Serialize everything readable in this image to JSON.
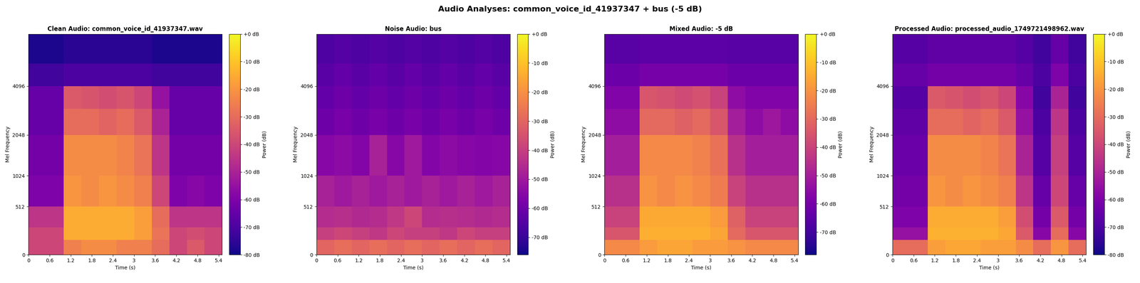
{
  "title": "Audio Analyses: common_voice_id_41937347 + bus (-5 dB)",
  "chart_data": [
    {
      "type": "heatmap",
      "title": "Clean Audio: common_voice_id_41937347.wav",
      "x_label": "Time (s)",
      "y_label": "Mel Frequency",
      "x": [
        0,
        0.5,
        1,
        1.5,
        2,
        2.5,
        3,
        3.5,
        4,
        4.5,
        5,
        5.5
      ],
      "y": [
        0,
        128,
        256,
        512,
        1024,
        2048,
        3000,
        4096,
        5500,
        8000
      ],
      "cells": [
        [
          -40,
          -40,
          -25,
          -22,
          -22,
          -25,
          -25,
          -30,
          -40,
          -35,
          -40
        ],
        [
          -40,
          -40,
          -15,
          -15,
          -15,
          -15,
          -18,
          -28,
          -40,
          -38,
          -40
        ],
        [
          -45,
          -45,
          -15,
          -15,
          -15,
          -15,
          -18,
          -30,
          -45,
          -45,
          -45
        ],
        [
          -60,
          -60,
          -20,
          -22,
          -20,
          -22,
          -25,
          -40,
          -60,
          -58,
          -60
        ],
        [
          -62,
          -62,
          -22,
          -22,
          -22,
          -24,
          -28,
          -45,
          -62,
          -62,
          -62
        ],
        [
          -65,
          -65,
          -30,
          -30,
          -32,
          -30,
          -35,
          -50,
          -65,
          -65,
          -65
        ],
        [
          -65,
          -65,
          -35,
          -36,
          -38,
          -36,
          -40,
          -55,
          -65,
          -65,
          -65
        ],
        [
          -72,
          -72,
          -70,
          -70,
          -70,
          -70,
          -70,
          -72,
          -72,
          -72,
          -72
        ],
        [
          -78,
          -78,
          -76,
          -76,
          -76,
          -76,
          -76,
          -78,
          -78,
          -78,
          -78
        ]
      ],
      "xlim": [
        0,
        5.5
      ],
      "xticks": [
        0,
        0.6,
        1.2,
        1.8,
        2.4,
        3,
        3.6,
        4.2,
        4.8,
        5.4
      ],
      "ylim": [
        0,
        8000
      ],
      "yticks": [
        0,
        512,
        1024,
        2048,
        4096
      ],
      "colorbar": {
        "label": "Power (dB)",
        "range": [
          -80,
          0
        ],
        "ticks": [
          {
            "value": 0,
            "label": "+0 dB"
          },
          {
            "value": -10,
            "label": "-10 dB"
          },
          {
            "value": -20,
            "label": "-20 dB"
          },
          {
            "value": -30,
            "label": "-30 dB"
          },
          {
            "value": -40,
            "label": "-40 dB"
          },
          {
            "value": -50,
            "label": "-50 dB"
          },
          {
            "value": -60,
            "label": "-60 dB"
          },
          {
            "value": -70,
            "label": "-70 dB"
          },
          {
            "value": -80,
            "label": "-80 dB"
          }
        ]
      }
    },
    {
      "type": "heatmap",
      "title": "Noise Audio: bus",
      "x_label": "Time (s)",
      "y_label": "Mel Frequency",
      "x": [
        0,
        0.5,
        1,
        1.5,
        2,
        2.5,
        3,
        3.5,
        4,
        4.5,
        5,
        5.5
      ],
      "y": [
        0,
        128,
        256,
        512,
        1024,
        2048,
        3000,
        4096,
        5500,
        8000
      ],
      "cells": [
        [
          -30,
          -28,
          -30,
          -28,
          -30,
          -28,
          -30,
          -28,
          -30,
          -28,
          -30
        ],
        [
          -40,
          -38,
          -40,
          -42,
          -38,
          -40,
          -40,
          -42,
          -38,
          -40,
          -40
        ],
        [
          -45,
          -44,
          -46,
          -45,
          -42,
          -38,
          -45,
          -44,
          -45,
          -46,
          -45
        ],
        [
          -48,
          -50,
          -48,
          -50,
          -48,
          -50,
          -48,
          -50,
          -48,
          -50,
          -48
        ],
        [
          -55,
          -54,
          -56,
          -48,
          -55,
          -50,
          -56,
          -54,
          -55,
          -56,
          -55
        ],
        [
          -60,
          -58,
          -60,
          -58,
          -60,
          -58,
          -60,
          -58,
          -60,
          -58,
          -60
        ],
        [
          -62,
          -60,
          -62,
          -60,
          -62,
          -60,
          -62,
          -60,
          -62,
          -60,
          -62
        ],
        [
          -64,
          -62,
          -64,
          -62,
          -64,
          -62,
          -64,
          -62,
          -64,
          -62,
          -64
        ],
        [
          -66,
          -65,
          -66,
          -65,
          -66,
          -65,
          -66,
          -65,
          -66,
          -65,
          -66
        ]
      ],
      "xlim": [
        0,
        5.5
      ],
      "xticks": [
        0,
        0.6,
        1.2,
        1.8,
        2.4,
        3,
        3.6,
        4.2,
        4.8,
        5.4
      ],
      "ylim": [
        0,
        8000
      ],
      "yticks": [
        0,
        512,
        1024,
        2048,
        4096
      ],
      "colorbar": {
        "label": "Power (dB)",
        "range": [
          -76,
          0
        ],
        "ticks": [
          {
            "value": 0,
            "label": "+0 dB"
          },
          {
            "value": -10,
            "label": "-10 dB"
          },
          {
            "value": -20,
            "label": "-20 dB"
          },
          {
            "value": -30,
            "label": "-30 dB"
          },
          {
            "value": -40,
            "label": "-40 dB"
          },
          {
            "value": -50,
            "label": "-50 dB"
          },
          {
            "value": -60,
            "label": "-60 dB"
          },
          {
            "value": -70,
            "label": "-70 dB"
          }
        ]
      }
    },
    {
      "type": "heatmap",
      "title": "Mixed Audio: -5 dB",
      "x_label": "Time (s)",
      "y_label": "Mel Frequency",
      "x": [
        0,
        0.5,
        1,
        1.5,
        2,
        2.5,
        3,
        3.5,
        4,
        4.5,
        5,
        5.5
      ],
      "y": [
        0,
        128,
        256,
        512,
        1024,
        2048,
        3000,
        4096,
        5500,
        8000
      ],
      "cells": [
        [
          -22,
          -22,
          -18,
          -16,
          -16,
          -18,
          -18,
          -20,
          -22,
          -22,
          -22
        ],
        [
          -35,
          -35,
          -14,
          -14,
          -14,
          -14,
          -16,
          -30,
          -35,
          -35,
          -35
        ],
        [
          -40,
          -40,
          -15,
          -15,
          -15,
          -15,
          -18,
          -32,
          -40,
          -40,
          -40
        ],
        [
          -45,
          -45,
          -20,
          -22,
          -20,
          -22,
          -25,
          -40,
          -45,
          -45,
          -45
        ],
        [
          -50,
          -50,
          -22,
          -22,
          -22,
          -24,
          -28,
          -45,
          -50,
          -50,
          -50
        ],
        [
          -55,
          -55,
          -30,
          -30,
          -32,
          -30,
          -35,
          -50,
          -55,
          -52,
          -55
        ],
        [
          -58,
          -58,
          -35,
          -36,
          -38,
          -36,
          -40,
          -55,
          -58,
          -58,
          -58
        ],
        [
          -62,
          -62,
          -60,
          -60,
          -60,
          -60,
          -60,
          -62,
          -62,
          -62,
          -62
        ],
        [
          -66,
          -66,
          -65,
          -65,
          -65,
          -65,
          -65,
          -66,
          -66,
          -66,
          -66
        ]
      ],
      "xlim": [
        0,
        5.5
      ],
      "xticks": [
        0,
        0.6,
        1.2,
        1.8,
        2.4,
        3,
        3.6,
        4.2,
        4.8,
        5.4
      ],
      "ylim": [
        0,
        8000
      ],
      "yticks": [
        0,
        512,
        1024,
        2048,
        4096
      ],
      "colorbar": {
        "label": "Power (dB)",
        "range": [
          -78,
          0
        ],
        "ticks": [
          {
            "value": 0,
            "label": "+0 dB"
          },
          {
            "value": -10,
            "label": "-10 dB"
          },
          {
            "value": -20,
            "label": "-20 dB"
          },
          {
            "value": -30,
            "label": "-30 dB"
          },
          {
            "value": -40,
            "label": "-40 dB"
          },
          {
            "value": -50,
            "label": "-50 dB"
          },
          {
            "value": -60,
            "label": "-60 dB"
          },
          {
            "value": -70,
            "label": "-70 dB"
          }
        ]
      }
    },
    {
      "type": "heatmap",
      "title": "Processed Audio: processed_audio_1749721498962.wav",
      "x_label": "Time (s)",
      "y_label": "Mel Frequency",
      "x": [
        0,
        0.5,
        1,
        1.5,
        2,
        2.5,
        3,
        3.5,
        4,
        4.5,
        5,
        5.5
      ],
      "y": [
        0,
        128,
        256,
        512,
        1024,
        2048,
        3000,
        4096,
        5500,
        8000
      ],
      "cells": [
        [
          -30,
          -30,
          -18,
          -16,
          -16,
          -18,
          -18,
          -22,
          -30,
          -20,
          -30
        ],
        [
          -55,
          -55,
          -14,
          -14,
          -14,
          -14,
          -16,
          -35,
          -58,
          -30,
          -58
        ],
        [
          -60,
          -60,
          -15,
          -15,
          -15,
          -15,
          -18,
          -38,
          -62,
          -35,
          -62
        ],
        [
          -62,
          -62,
          -20,
          -22,
          -20,
          -22,
          -25,
          -45,
          -65,
          -40,
          -65
        ],
        [
          -64,
          -64,
          -22,
          -22,
          -22,
          -24,
          -28,
          -50,
          -68,
          -42,
          -68
        ],
        [
          -66,
          -66,
          -30,
          -30,
          -32,
          -30,
          -35,
          -55,
          -70,
          -45,
          -70
        ],
        [
          -68,
          -68,
          -35,
          -36,
          -38,
          -36,
          -40,
          -58,
          -72,
          -50,
          -72
        ],
        [
          -65,
          -65,
          -62,
          -62,
          -62,
          -62,
          -62,
          -65,
          -70,
          -60,
          -70
        ],
        [
          -68,
          -68,
          -66,
          -66,
          -66,
          -66,
          -66,
          -68,
          -72,
          -65,
          -72
        ]
      ],
      "xlim": [
        0,
        5.5
      ],
      "xticks": [
        0,
        0.6,
        1.2,
        1.8,
        2.4,
        3,
        3.6,
        4.2,
        4.8,
        5.4
      ],
      "ylim": [
        0,
        8000
      ],
      "yticks": [
        0,
        512,
        1024,
        2048,
        4096
      ],
      "colorbar": {
        "label": "Power (dB)",
        "range": [
          -80,
          0
        ],
        "ticks": [
          {
            "value": 0,
            "label": "+0 dB"
          },
          {
            "value": -10,
            "label": "-10 dB"
          },
          {
            "value": -20,
            "label": "-20 dB"
          },
          {
            "value": -30,
            "label": "-30 dB"
          },
          {
            "value": -40,
            "label": "-40 dB"
          },
          {
            "value": -50,
            "label": "-50 dB"
          },
          {
            "value": -60,
            "label": "-60 dB"
          },
          {
            "value": -70,
            "label": "-70 dB"
          },
          {
            "value": -80,
            "label": "-80 dB"
          }
        ]
      }
    }
  ]
}
